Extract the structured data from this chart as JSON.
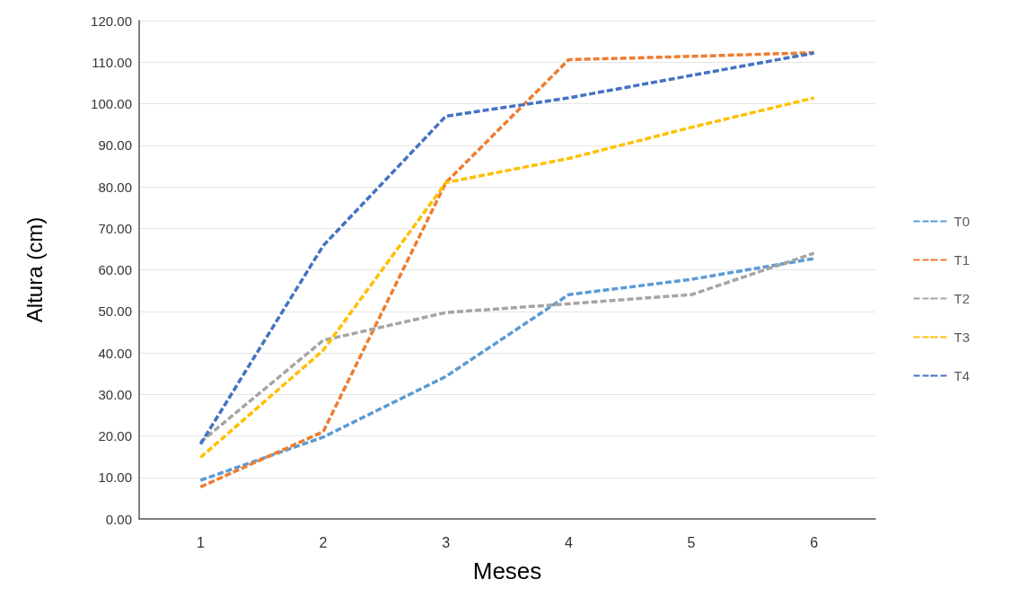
{
  "chart_data": {
    "type": "line",
    "xlabel": "Meses",
    "ylabel": "Altura (cm)",
    "categories": [
      "1",
      "2",
      "3",
      "4",
      "5",
      "6"
    ],
    "series": [
      {
        "name": "T0",
        "color": "#5b9bd5",
        "values": [
          9.3,
          19.7,
          34.3,
          54,
          57.7,
          62.7
        ]
      },
      {
        "name": "T1",
        "color": "#ed7d31",
        "values": [
          7.7,
          21,
          81,
          110.6,
          111.4,
          112.3
        ]
      },
      {
        "name": "T2",
        "color": "#a5a5a5",
        "values": [
          18.5,
          43,
          49.7,
          51.8,
          54,
          64
        ]
      },
      {
        "name": "T3",
        "color": "#ffc000",
        "values": [
          14.8,
          40.6,
          81,
          86.8,
          94.3,
          101.4
        ]
      },
      {
        "name": "T4",
        "color": "#4472c4",
        "values": [
          18,
          65.8,
          97,
          101.4,
          106.8,
          112.2
        ]
      }
    ],
    "ylim": [
      0,
      120
    ],
    "yticks": [
      {
        "value": 0,
        "label": "0.00"
      },
      {
        "value": 10,
        "label": "10.00"
      },
      {
        "value": 20,
        "label": "20.00"
      },
      {
        "value": 30,
        "label": "30.00"
      },
      {
        "value": 40,
        "label": "40.00"
      },
      {
        "value": 50,
        "label": "50.00"
      },
      {
        "value": 60,
        "label": "60.00"
      },
      {
        "value": 70,
        "label": "70.00"
      },
      {
        "value": 80,
        "label": "80.00"
      },
      {
        "value": 90,
        "label": "90.00"
      },
      {
        "value": 100,
        "label": "100.00"
      },
      {
        "value": 110,
        "label": "110.00"
      },
      {
        "value": 120,
        "label": "120.00"
      }
    ],
    "grid": "y",
    "legend": "right",
    "marker": "none",
    "line_style": "dashed"
  }
}
